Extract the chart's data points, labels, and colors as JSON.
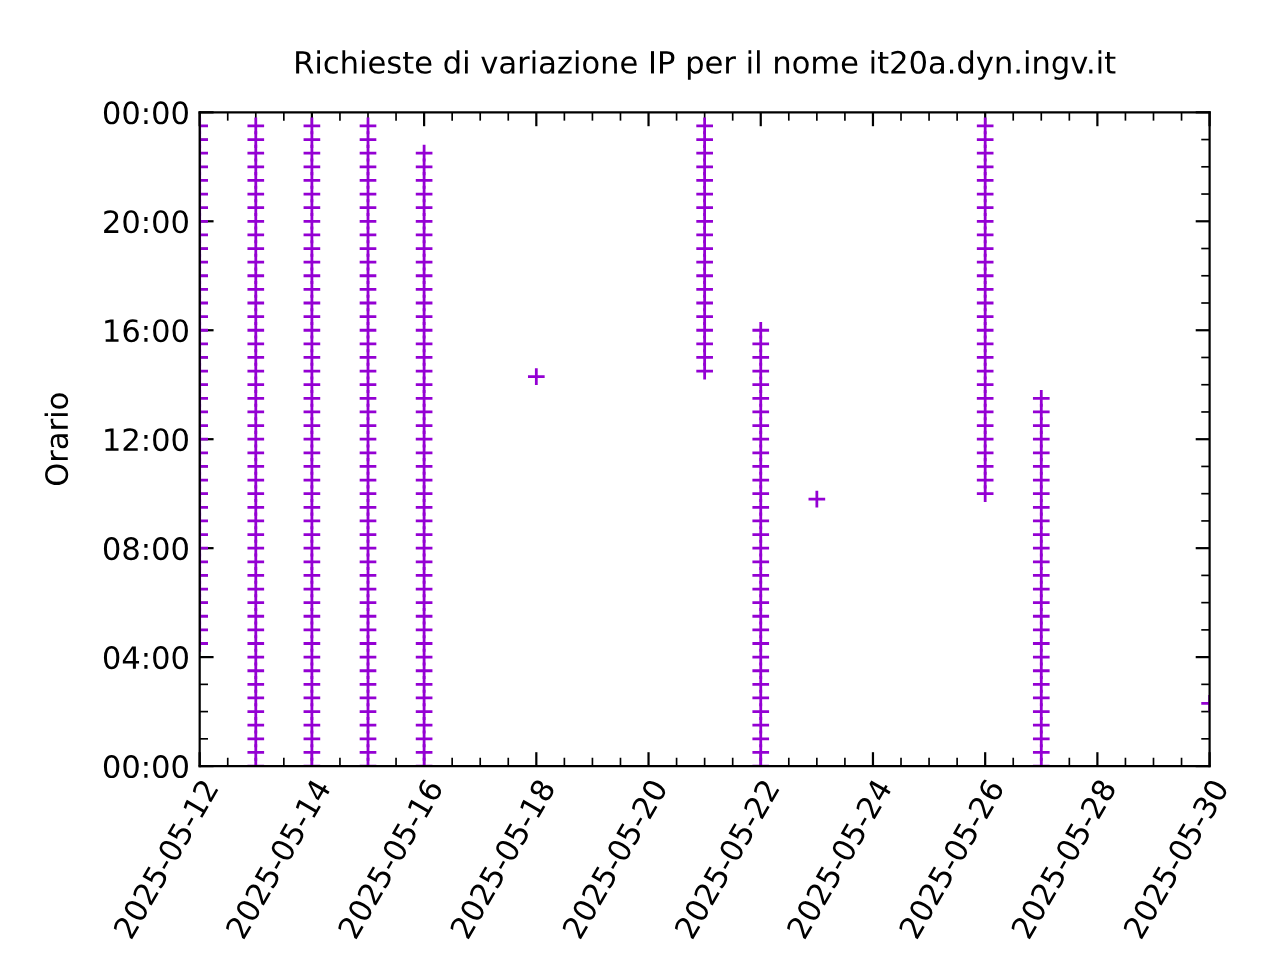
{
  "chart_data": {
    "type": "scatter",
    "title": "Richieste di variazione IP per il nome it20a.dyn.ingv.it",
    "ylabel": "Orario",
    "marker": "cross",
    "grid": false,
    "legend": false,
    "xlim": [
      "2025-05-12",
      "2025-05-30"
    ],
    "xticks": [
      "2025-05-12",
      "2025-05-14",
      "2025-05-16",
      "2025-05-18",
      "2025-05-20",
      "2025-05-22",
      "2025-05-24",
      "2025-05-26",
      "2025-05-28",
      "2025-05-30"
    ],
    "ylim": [
      0,
      24
    ],
    "yticks": [
      {
        "value": 0,
        "label": "00:00"
      },
      {
        "value": 4,
        "label": "04:00"
      },
      {
        "value": 8,
        "label": "08:00"
      },
      {
        "value": 12,
        "label": "12:00"
      },
      {
        "value": 16,
        "label": "16:00"
      },
      {
        "value": 20,
        "label": "20:00"
      },
      {
        "value": 24,
        "label": "00:00"
      }
    ],
    "series": [
      {
        "color": "#9400d3",
        "x": [
          "2025-05-12",
          "2025-05-12",
          "2025-05-12",
          "2025-05-12",
          "2025-05-12",
          "2025-05-12",
          "2025-05-12",
          "2025-05-12",
          "2025-05-12",
          "2025-05-12",
          "2025-05-12",
          "2025-05-12",
          "2025-05-12",
          "2025-05-12",
          "2025-05-12",
          "2025-05-12",
          "2025-05-12",
          "2025-05-12",
          "2025-05-12",
          "2025-05-12",
          "2025-05-12",
          "2025-05-12",
          "2025-05-12",
          "2025-05-12",
          "2025-05-12",
          "2025-05-12",
          "2025-05-12",
          "2025-05-12",
          "2025-05-12",
          "2025-05-12",
          "2025-05-12",
          "2025-05-12",
          "2025-05-12",
          "2025-05-12",
          "2025-05-12",
          "2025-05-12",
          "2025-05-12",
          "2025-05-12",
          "2025-05-12"
        ],
        "values": [
          4.5,
          5,
          5.5,
          6,
          6.5,
          7,
          7.5,
          8,
          8.5,
          9,
          9.5,
          10,
          10.5,
          11,
          11.5,
          12,
          12.5,
          13,
          13.5,
          14,
          14.5,
          15,
          15.5,
          16,
          16.5,
          17,
          17.5,
          18,
          18.5,
          19,
          19.5,
          20,
          20.5,
          21,
          21.5,
          22,
          22.5,
          23,
          23.5
        ]
      },
      {
        "color": "#9400d3",
        "x": [
          "2025-05-13",
          "2025-05-13",
          "2025-05-13",
          "2025-05-13",
          "2025-05-13",
          "2025-05-13",
          "2025-05-13",
          "2025-05-13",
          "2025-05-13",
          "2025-05-13",
          "2025-05-13",
          "2025-05-13",
          "2025-05-13",
          "2025-05-13",
          "2025-05-13",
          "2025-05-13",
          "2025-05-13",
          "2025-05-13",
          "2025-05-13",
          "2025-05-13",
          "2025-05-13",
          "2025-05-13",
          "2025-05-13",
          "2025-05-13",
          "2025-05-13",
          "2025-05-13",
          "2025-05-13",
          "2025-05-13",
          "2025-05-13",
          "2025-05-13",
          "2025-05-13",
          "2025-05-13",
          "2025-05-13",
          "2025-05-13",
          "2025-05-13",
          "2025-05-13",
          "2025-05-13",
          "2025-05-13",
          "2025-05-13",
          "2025-05-13",
          "2025-05-13",
          "2025-05-13",
          "2025-05-13",
          "2025-05-13",
          "2025-05-13",
          "2025-05-13",
          "2025-05-13",
          "2025-05-13"
        ],
        "values": [
          0,
          0.5,
          1,
          1.5,
          2,
          2.5,
          3,
          3.5,
          4,
          4.5,
          5,
          5.5,
          6,
          6.5,
          7,
          7.5,
          8,
          8.5,
          9,
          9.5,
          10,
          10.5,
          11,
          11.5,
          12,
          12.5,
          13,
          13.5,
          14,
          14.5,
          15,
          15.5,
          16,
          16.5,
          17,
          17.5,
          18,
          18.5,
          19,
          19.5,
          20,
          20.5,
          21,
          21.5,
          22,
          22.5,
          23,
          23.5
        ]
      },
      {
        "color": "#9400d3",
        "x": [
          "2025-05-14",
          "2025-05-14",
          "2025-05-14",
          "2025-05-14",
          "2025-05-14",
          "2025-05-14",
          "2025-05-14",
          "2025-05-14",
          "2025-05-14",
          "2025-05-14",
          "2025-05-14",
          "2025-05-14",
          "2025-05-14",
          "2025-05-14",
          "2025-05-14",
          "2025-05-14",
          "2025-05-14",
          "2025-05-14",
          "2025-05-14",
          "2025-05-14",
          "2025-05-14",
          "2025-05-14",
          "2025-05-14",
          "2025-05-14",
          "2025-05-14",
          "2025-05-14",
          "2025-05-14",
          "2025-05-14",
          "2025-05-14",
          "2025-05-14",
          "2025-05-14",
          "2025-05-14",
          "2025-05-14",
          "2025-05-14",
          "2025-05-14",
          "2025-05-14",
          "2025-05-14",
          "2025-05-14",
          "2025-05-14",
          "2025-05-14",
          "2025-05-14",
          "2025-05-14",
          "2025-05-14",
          "2025-05-14",
          "2025-05-14",
          "2025-05-14",
          "2025-05-14",
          "2025-05-14"
        ],
        "values": [
          0,
          0.5,
          1,
          1.5,
          2,
          2.5,
          3,
          3.5,
          4,
          4.5,
          5,
          5.5,
          6,
          6.5,
          7,
          7.5,
          8,
          8.5,
          9,
          9.5,
          10,
          10.5,
          11,
          11.5,
          12,
          12.5,
          13,
          13.5,
          14,
          14.5,
          15,
          15.5,
          16,
          16.5,
          17,
          17.5,
          18,
          18.5,
          19,
          19.5,
          20,
          20.5,
          21,
          21.5,
          22,
          22.5,
          23,
          23.5
        ]
      },
      {
        "color": "#9400d3",
        "x": [
          "2025-05-15",
          "2025-05-15",
          "2025-05-15",
          "2025-05-15",
          "2025-05-15",
          "2025-05-15",
          "2025-05-15",
          "2025-05-15",
          "2025-05-15",
          "2025-05-15",
          "2025-05-15",
          "2025-05-15",
          "2025-05-15",
          "2025-05-15",
          "2025-05-15",
          "2025-05-15",
          "2025-05-15",
          "2025-05-15",
          "2025-05-15",
          "2025-05-15",
          "2025-05-15",
          "2025-05-15",
          "2025-05-15",
          "2025-05-15",
          "2025-05-15",
          "2025-05-15",
          "2025-05-15",
          "2025-05-15",
          "2025-05-15",
          "2025-05-15",
          "2025-05-15",
          "2025-05-15",
          "2025-05-15",
          "2025-05-15",
          "2025-05-15",
          "2025-05-15",
          "2025-05-15",
          "2025-05-15",
          "2025-05-15",
          "2025-05-15",
          "2025-05-15",
          "2025-05-15",
          "2025-05-15",
          "2025-05-15",
          "2025-05-15",
          "2025-05-15",
          "2025-05-15",
          "2025-05-15"
        ],
        "values": [
          0,
          0.5,
          1,
          1.5,
          2,
          2.5,
          3,
          3.5,
          4,
          4.5,
          5,
          5.5,
          6,
          6.5,
          7,
          7.5,
          8,
          8.5,
          9,
          9.5,
          10,
          10.5,
          11,
          11.5,
          12,
          12.5,
          13,
          13.5,
          14,
          14.5,
          15,
          15.5,
          16,
          16.5,
          17,
          17.5,
          18,
          18.5,
          19,
          19.5,
          20,
          20.5,
          21,
          21.5,
          22,
          22.5,
          23,
          23.5
        ]
      },
      {
        "color": "#9400d3",
        "x": [
          "2025-05-16",
          "2025-05-16",
          "2025-05-16",
          "2025-05-16",
          "2025-05-16",
          "2025-05-16",
          "2025-05-16",
          "2025-05-16",
          "2025-05-16",
          "2025-05-16",
          "2025-05-16",
          "2025-05-16",
          "2025-05-16",
          "2025-05-16",
          "2025-05-16",
          "2025-05-16",
          "2025-05-16",
          "2025-05-16",
          "2025-05-16",
          "2025-05-16",
          "2025-05-16",
          "2025-05-16",
          "2025-05-16",
          "2025-05-16",
          "2025-05-16",
          "2025-05-16",
          "2025-05-16",
          "2025-05-16",
          "2025-05-16",
          "2025-05-16",
          "2025-05-16",
          "2025-05-16",
          "2025-05-16",
          "2025-05-16",
          "2025-05-16",
          "2025-05-16",
          "2025-05-16",
          "2025-05-16",
          "2025-05-16",
          "2025-05-16",
          "2025-05-16",
          "2025-05-16",
          "2025-05-16",
          "2025-05-16",
          "2025-05-16",
          "2025-05-16"
        ],
        "values": [
          0,
          0.5,
          1,
          1.5,
          2,
          2.5,
          3,
          3.5,
          4,
          4.5,
          5,
          5.5,
          6,
          6.5,
          7,
          7.5,
          8,
          8.5,
          9,
          9.5,
          10,
          10.5,
          11,
          11.5,
          12,
          12.5,
          13,
          13.5,
          14,
          14.5,
          15,
          15.5,
          16,
          16.5,
          17,
          17.5,
          18,
          18.5,
          19,
          19.5,
          20,
          20.5,
          21,
          21.5,
          22,
          22.5
        ]
      },
      {
        "color": "#9400d3",
        "x": [
          "2025-05-18"
        ],
        "values": [
          14.3
        ]
      },
      {
        "color": "#9400d3",
        "x": [
          "2025-05-21",
          "2025-05-21",
          "2025-05-21",
          "2025-05-21",
          "2025-05-21",
          "2025-05-21",
          "2025-05-21",
          "2025-05-21",
          "2025-05-21",
          "2025-05-21",
          "2025-05-21",
          "2025-05-21",
          "2025-05-21",
          "2025-05-21",
          "2025-05-21",
          "2025-05-21",
          "2025-05-21",
          "2025-05-21",
          "2025-05-21"
        ],
        "values": [
          14.5,
          15,
          15.5,
          16,
          16.5,
          17,
          17.5,
          18,
          18.5,
          19,
          19.5,
          20,
          20.5,
          21,
          21.5,
          22,
          22.5,
          23,
          23.5
        ]
      },
      {
        "color": "#9400d3",
        "x": [
          "2025-05-22",
          "2025-05-22",
          "2025-05-22",
          "2025-05-22",
          "2025-05-22",
          "2025-05-22",
          "2025-05-22",
          "2025-05-22",
          "2025-05-22",
          "2025-05-22",
          "2025-05-22",
          "2025-05-22",
          "2025-05-22",
          "2025-05-22",
          "2025-05-22",
          "2025-05-22",
          "2025-05-22",
          "2025-05-22",
          "2025-05-22",
          "2025-05-22",
          "2025-05-22",
          "2025-05-22",
          "2025-05-22",
          "2025-05-22",
          "2025-05-22",
          "2025-05-22",
          "2025-05-22",
          "2025-05-22",
          "2025-05-22",
          "2025-05-22",
          "2025-05-22",
          "2025-05-22",
          "2025-05-22"
        ],
        "values": [
          0,
          0.5,
          1,
          1.5,
          2,
          2.5,
          3,
          3.5,
          4,
          4.5,
          5,
          5.5,
          6,
          6.5,
          7,
          7.5,
          8,
          8.5,
          9,
          9.5,
          10,
          10.5,
          11,
          11.5,
          12,
          12.5,
          13,
          13.5,
          14,
          14.5,
          15,
          15.5,
          16
        ]
      },
      {
        "color": "#9400d3",
        "x": [
          "2025-05-23"
        ],
        "values": [
          9.8
        ]
      },
      {
        "color": "#9400d3",
        "x": [
          "2025-05-26",
          "2025-05-26",
          "2025-05-26",
          "2025-05-26",
          "2025-05-26",
          "2025-05-26",
          "2025-05-26",
          "2025-05-26",
          "2025-05-26",
          "2025-05-26",
          "2025-05-26",
          "2025-05-26",
          "2025-05-26",
          "2025-05-26",
          "2025-05-26",
          "2025-05-26",
          "2025-05-26",
          "2025-05-26",
          "2025-05-26",
          "2025-05-26",
          "2025-05-26",
          "2025-05-26",
          "2025-05-26",
          "2025-05-26",
          "2025-05-26",
          "2025-05-26",
          "2025-05-26",
          "2025-05-26"
        ],
        "values": [
          10,
          10.5,
          11,
          11.5,
          12,
          12.5,
          13,
          13.5,
          14,
          14.5,
          15,
          15.5,
          16,
          16.5,
          17,
          17.5,
          18,
          18.5,
          19,
          19.5,
          20,
          20.5,
          21,
          21.5,
          22,
          22.5,
          23,
          23.5
        ]
      },
      {
        "color": "#9400d3",
        "x": [
          "2025-05-27",
          "2025-05-27",
          "2025-05-27",
          "2025-05-27",
          "2025-05-27",
          "2025-05-27",
          "2025-05-27",
          "2025-05-27",
          "2025-05-27",
          "2025-05-27",
          "2025-05-27",
          "2025-05-27",
          "2025-05-27",
          "2025-05-27",
          "2025-05-27",
          "2025-05-27",
          "2025-05-27",
          "2025-05-27",
          "2025-05-27",
          "2025-05-27",
          "2025-05-27",
          "2025-05-27",
          "2025-05-27",
          "2025-05-27",
          "2025-05-27",
          "2025-05-27",
          "2025-05-27",
          "2025-05-27"
        ],
        "values": [
          0,
          0.5,
          1,
          1.5,
          2,
          2.5,
          3,
          3.5,
          4,
          4.5,
          5,
          5.5,
          6,
          6.5,
          7,
          7.5,
          8,
          8.5,
          9,
          9.5,
          10,
          10.5,
          11,
          11.5,
          12,
          12.5,
          13,
          13.5
        ]
      },
      {
        "color": "#9400d3",
        "x": [
          "2025-05-30"
        ],
        "values": [
          2.3
        ]
      }
    ]
  }
}
